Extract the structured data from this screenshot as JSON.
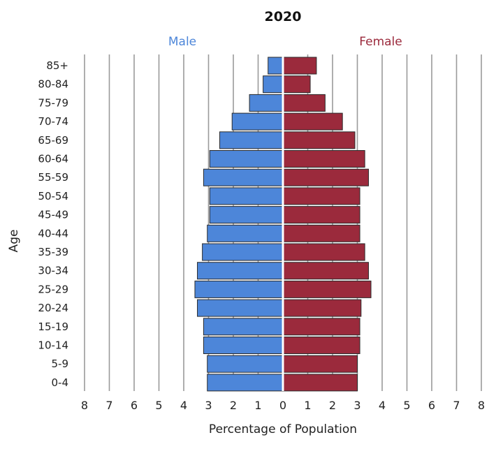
{
  "chart_data": {
    "type": "bar",
    "orientation": "horizontal",
    "title": "2020",
    "xlabel": "Percentage of Population",
    "ylabel": "Age",
    "xlim": [
      -8,
      8
    ],
    "x_ticks": [
      -8,
      -7,
      -6,
      -5,
      -4,
      -3,
      -2,
      -1,
      0,
      1,
      2,
      3,
      4,
      5,
      6,
      7,
      8
    ],
    "x_tick_labels": [
      "8",
      "7",
      "6",
      "5",
      "4",
      "3",
      "2",
      "1",
      "0",
      "1",
      "2",
      "3",
      "4",
      "5",
      "6",
      "7",
      "8"
    ],
    "grid": "vertical",
    "categories": [
      "85+",
      "80-84",
      "75-79",
      "70-74",
      "65-69",
      "60-64",
      "55-59",
      "50-54",
      "45-49",
      "40-44",
      "35-39",
      "30-34",
      "25-29",
      "20-24",
      "15-19",
      "10-14",
      "5-9",
      "0-4"
    ],
    "series": [
      {
        "name": "Male",
        "color": "#4d86d9",
        "side": "left",
        "values": [
          0.6,
          0.8,
          1.35,
          2.05,
          2.55,
          2.95,
          3.2,
          2.95,
          2.95,
          3.05,
          3.25,
          3.45,
          3.55,
          3.45,
          3.2,
          3.2,
          3.05,
          3.05
        ]
      },
      {
        "name": "Female",
        "color": "#9b2a3c",
        "side": "right",
        "values": [
          1.35,
          1.1,
          1.7,
          2.4,
          2.9,
          3.3,
          3.45,
          3.1,
          3.1,
          3.1,
          3.3,
          3.45,
          3.55,
          3.15,
          3.1,
          3.1,
          3.0,
          3.0
        ]
      }
    ],
    "legend": {
      "placement": "top",
      "male_color": "#4d86d9",
      "female_color": "#9b2a3c"
    }
  }
}
